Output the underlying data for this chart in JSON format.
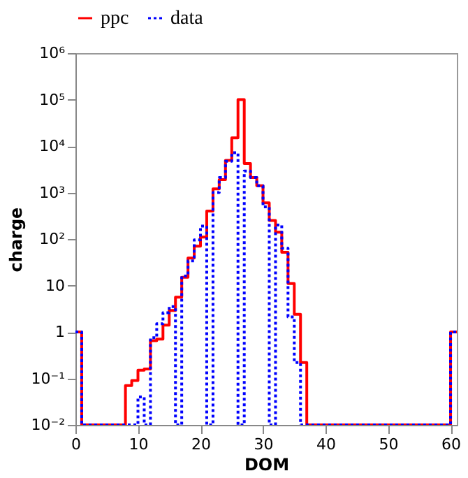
{
  "chart_data": {
    "type": "histogram",
    "xlabel": "DOM",
    "ylabel": "charge",
    "bins": [
      0,
      1,
      2,
      3,
      4,
      5,
      6,
      7,
      8,
      9,
      10,
      11,
      12,
      13,
      14,
      15,
      16,
      17,
      18,
      19,
      20,
      21,
      22,
      23,
      24,
      25,
      26,
      27,
      28,
      29,
      30,
      31,
      32,
      33,
      34,
      35,
      36,
      37,
      38,
      39,
      40,
      41,
      42,
      43,
      44,
      45,
      46,
      47,
      48,
      49,
      50,
      51,
      52,
      53,
      54,
      55,
      56,
      57,
      58,
      59,
      60,
      61
    ],
    "series": [
      {
        "name": "ppc",
        "color": "#ff0000",
        "line_style": "solid",
        "values": [
          1,
          0.01,
          0.01,
          0.01,
          0.01,
          0.01,
          0.01,
          0.01,
          0.07,
          0.09,
          0.15,
          0.16,
          0.65,
          0.7,
          1.4,
          2.9,
          5.6,
          15,
          39,
          70,
          110,
          400,
          1200,
          1900,
          4900,
          15000,
          100000,
          4200,
          2100,
          1400,
          600,
          250,
          140,
          52,
          11,
          2.4,
          0.22,
          0.01,
          0.01,
          0.01,
          0.01,
          0.01,
          0.01,
          0.01,
          0.01,
          0.01,
          0.01,
          0.01,
          0.01,
          0.01,
          0.01,
          0.01,
          0.01,
          0.01,
          0.01,
          0.01,
          0.01,
          0.01,
          0.01,
          0.01,
          1
        ]
      },
      {
        "name": "data",
        "color": "#0000ff",
        "line_style": "dotted",
        "values": [
          1,
          0.01,
          0.01,
          0.01,
          0.01,
          0.01,
          0.01,
          0.01,
          0.01,
          0.01,
          0.04,
          0.01,
          0.75,
          1.5,
          2.6,
          3.5,
          0.01,
          16,
          34,
          96,
          190,
          0.01,
          1000,
          2100,
          4700,
          7200,
          0.01,
          2900,
          2100,
          1400,
          490,
          0.01,
          200,
          63,
          2.1,
          0.22,
          0.01,
          0.01,
          0.01,
          0.01,
          0.01,
          0.01,
          0.01,
          0.01,
          0.01,
          0.01,
          0.01,
          0.01,
          0.01,
          0.01,
          0.01,
          0.01,
          0.01,
          0.01,
          0.01,
          0.01,
          0.01,
          0.01,
          0.01,
          0.01,
          1
        ]
      }
    ],
    "log": "y",
    "grid": false,
    "legend": "top",
    "xlim": [
      0,
      61
    ],
    "xticks": [
      0,
      10,
      20,
      30,
      40,
      50,
      60
    ],
    "ylim": [
      0.01,
      1000000
    ],
    "yticks": [
      {
        "value": 0.01,
        "label": "10⁻²"
      },
      {
        "value": 0.1,
        "label": "10⁻¹"
      },
      1,
      10,
      {
        "value": 100,
        "label": "10²"
      },
      {
        "value": 1000,
        "label": "10³"
      },
      {
        "value": 10000,
        "label": "10⁴"
      },
      {
        "value": 100000,
        "label": "10⁵"
      },
      {
        "value": 1000000,
        "label": "10⁶"
      }
    ]
  }
}
